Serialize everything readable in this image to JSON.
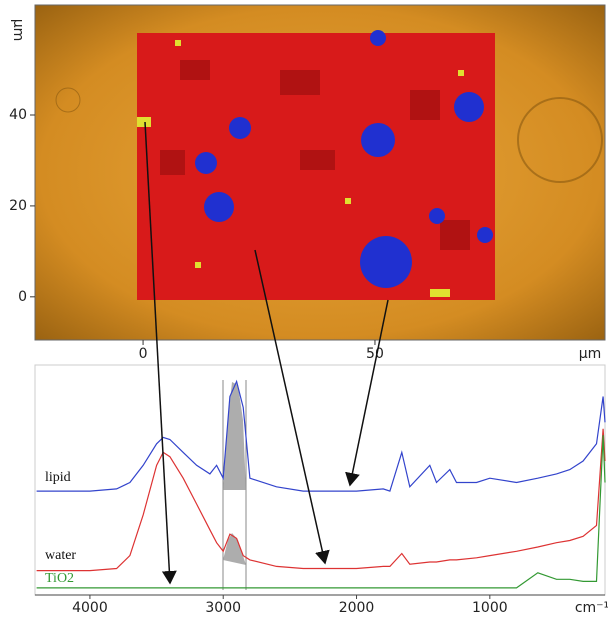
{
  "chart_data": [
    {
      "type": "image",
      "xlabel": "µm",
      "ylabel": "µm",
      "xlim": [
        -23.3,
        99.6
      ],
      "ylim": [
        -9.5,
        64.2
      ],
      "xticks": [
        0,
        50
      ],
      "yticks": [
        0,
        20,
        40
      ]
    },
    {
      "type": "line",
      "xlabel": "cm⁻¹",
      "xlim": [
        4412,
        136
      ],
      "xticks": [
        4000,
        3000,
        2000,
        1000
      ],
      "ylim": [
        0,
        100
      ],
      "x": [
        4400,
        4000,
        3800,
        3700,
        3600,
        3500,
        3450,
        3400,
        3300,
        3200,
        3100,
        3050,
        3000,
        2950,
        2900,
        2850,
        2800,
        2600,
        2400,
        2200,
        2000,
        1800,
        1750,
        1660,
        1600,
        1450,
        1400,
        1300,
        1250,
        1100,
        1000,
        800,
        640,
        500,
        400,
        300,
        200,
        150,
        136
      ],
      "series": [
        {
          "name": "lipid",
          "color": "#3344cc",
          "values": [
            46,
            46,
            47,
            50,
            58,
            68,
            71,
            70,
            64,
            58,
            54,
            58,
            52,
            90,
            97,
            85,
            52,
            48,
            46,
            46,
            46,
            47,
            46,
            64,
            48,
            58,
            50,
            56,
            50,
            50,
            52,
            50,
            52,
            54,
            56,
            60,
            68,
            90,
            78
          ]
        },
        {
          "name": "water",
          "color": "#dd3333",
          "values": [
            9,
            9,
            10,
            16,
            35,
            58,
            64,
            62,
            52,
            40,
            28,
            22,
            18,
            26,
            24,
            16,
            14,
            11,
            10,
            10,
            10,
            11,
            11,
            17,
            12,
            13,
            13,
            14,
            14,
            15,
            16,
            18,
            20,
            22,
            23,
            25,
            30,
            75,
            60
          ]
        },
        {
          "name": "TiO2",
          "color": "#339933",
          "values": [
            1,
            1,
            1,
            1,
            1,
            1,
            1,
            1,
            1,
            1,
            1,
            1,
            1,
            1,
            1,
            1,
            1,
            1,
            1,
            1,
            1,
            1,
            1,
            1,
            1,
            1,
            1,
            1,
            1,
            1,
            1,
            1,
            8,
            5,
            5,
            4,
            4,
            72,
            50
          ]
        }
      ]
    }
  ]
}
